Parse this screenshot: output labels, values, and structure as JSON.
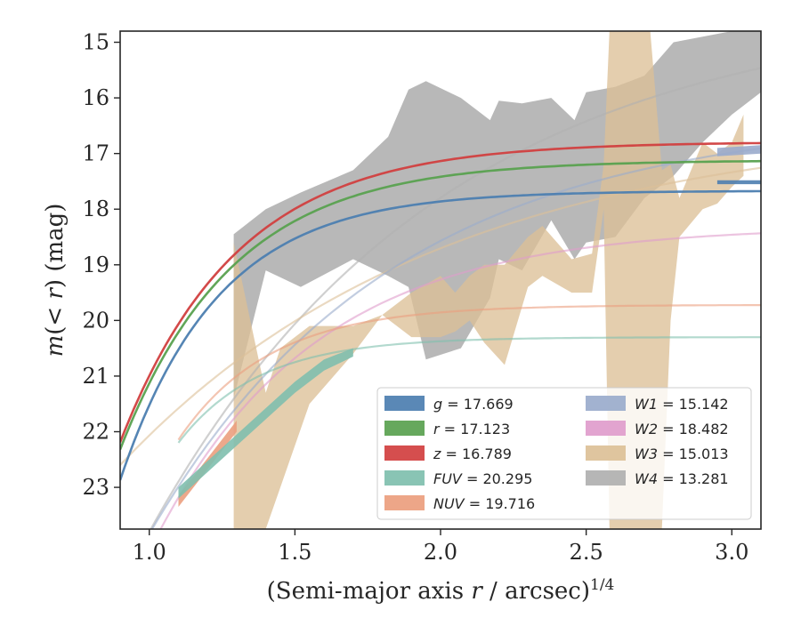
{
  "chart_data": {
    "type": "line",
    "title": "",
    "xlabel": "(Semi-major axis r / arcsec)^1/4",
    "xlabel_parts": [
      "(Semi-major axis ",
      "r",
      " / arcsec)",
      "1/4"
    ],
    "ylabel": "m(< r) (mag)",
    "ylabel_parts": [
      "m",
      "(< ",
      "r",
      ") (mag)"
    ],
    "xlim": [
      0.9,
      3.1
    ],
    "ylim": [
      23.75,
      14.8
    ],
    "y_inverted": true,
    "grid": false,
    "legend_position": "lower-right",
    "xticks": [
      1.0,
      1.5,
      2.0,
      2.5,
      3.0
    ],
    "xtick_labels": [
      "1.0",
      "1.5",
      "2.0",
      "2.5",
      "3.0"
    ],
    "yticks": [
      15,
      16,
      17,
      18,
      19,
      20,
      21,
      22,
      23
    ],
    "ytick_labels": [
      "15",
      "16",
      "17",
      "18",
      "19",
      "20",
      "21",
      "22",
      "23"
    ],
    "series": [
      {
        "key": "g",
        "label": "17.669",
        "color": "#4c7eb0",
        "kind": "curve",
        "asymptote": 17.67,
        "amp": 5.2,
        "k": 3.0,
        "x0": 0.9,
        "x1": 3.1,
        "band": [
          [
            2.95,
            17.55,
            17.48
          ],
          [
            3.1,
            17.55,
            17.48
          ]
        ]
      },
      {
        "key": "r",
        "label": "17.123",
        "color": "#59a14f",
        "kind": "curve",
        "asymptote": 17.12,
        "amp": 5.2,
        "k": 2.6,
        "x0": 0.9,
        "x1": 3.1,
        "band": []
      },
      {
        "key": "z",
        "label": "16.789",
        "color": "#d13f3f",
        "kind": "curve",
        "asymptote": 16.79,
        "amp": 5.4,
        "k": 2.5,
        "x0": 0.9,
        "x1": 3.1,
        "band": []
      },
      {
        "key": "FUV",
        "label": "20.295",
        "color": "#7fbfae",
        "kind": "curve",
        "asymptote": 20.3,
        "amp": 3.9,
        "k": 3.6,
        "x0": 1.1,
        "x1": 3.1,
        "band": [
          [
            1.1,
            23.2,
            23.0
          ],
          [
            1.5,
            21.3,
            21.1
          ],
          [
            1.6,
            20.9,
            20.7
          ],
          [
            1.7,
            20.65,
            20.5
          ]
        ]
      },
      {
        "key": "NUV",
        "label": "19.716",
        "color": "#eb9e7e",
        "kind": "curve",
        "asymptote": 19.72,
        "amp": 4.6,
        "k": 3.2,
        "x0": 1.1,
        "x1": 3.1,
        "band": [
          [
            1.1,
            23.35,
            23.15
          ],
          [
            1.3,
            22.0,
            21.8
          ]
        ]
      },
      {
        "key": "W1",
        "label": "15.142",
        "color": "#9aabcc",
        "kind": "curve",
        "asymptote": 16.3,
        "amp": 8.5,
        "k": 1.2,
        "x0": 0.9,
        "x1": 3.1,
        "band": [
          [
            2.95,
            17.05,
            16.9
          ],
          [
            3.1,
            17.0,
            16.85
          ]
        ]
      },
      {
        "key": "W2",
        "label": "18.482",
        "color": "#df9ccc",
        "kind": "curve",
        "asymptote": 18.3,
        "amp": 7.0,
        "k": 1.8,
        "x0": 0.9,
        "x1": 3.1,
        "band": []
      },
      {
        "key": "W3",
        "label": "15.013",
        "color": "#dcc097",
        "kind": "band",
        "curve": {
          "asymptote": 16.4,
          "amp": 6.2,
          "k": 0.9,
          "x0": 0.9,
          "x1": 3.1
        },
        "band": [
          [
            1.29,
            23.75,
            18.6
          ],
          [
            1.4,
            23.75,
            21.3
          ],
          [
            1.45,
            23.0,
            20.5
          ],
          [
            1.55,
            21.5,
            20.1
          ],
          [
            1.7,
            20.6,
            20.1
          ],
          [
            1.8,
            19.9,
            19.9
          ],
          [
            1.9,
            20.3,
            19.5
          ],
          [
            2.0,
            20.3,
            19.2
          ],
          [
            2.05,
            20.2,
            19.5
          ],
          [
            2.1,
            20.0,
            19.2
          ],
          [
            2.15,
            20.4,
            19.0
          ],
          [
            2.22,
            20.8,
            19.0
          ],
          [
            2.3,
            19.4,
            18.5
          ],
          [
            2.35,
            19.2,
            18.3
          ],
          [
            2.45,
            19.5,
            18.9
          ],
          [
            2.52,
            19.5,
            18.8
          ],
          [
            2.56,
            18.0,
            17.2
          ],
          [
            2.58,
            23.75,
            14.8
          ],
          [
            2.72,
            23.75,
            14.8
          ],
          [
            2.76,
            23.75,
            17.3
          ],
          [
            2.79,
            20.0,
            17.2
          ],
          [
            2.82,
            18.5,
            17.8
          ],
          [
            2.9,
            18.0,
            16.8
          ],
          [
            2.95,
            17.9,
            17.0
          ],
          [
            3.0,
            17.6,
            16.8
          ],
          [
            3.04,
            17.4,
            16.3
          ]
        ]
      },
      {
        "key": "W4",
        "label": "13.281",
        "color": "#b0b0b0",
        "kind": "band",
        "curve": {
          "asymptote": 14.3,
          "amp": 10.5,
          "k": 1.0,
          "x0": 0.9,
          "x1": 3.1
        },
        "band": [
          [
            1.29,
            21.4,
            18.45
          ],
          [
            1.4,
            19.1,
            18.0
          ],
          [
            1.52,
            19.4,
            17.7
          ],
          [
            1.7,
            18.9,
            17.3
          ],
          [
            1.82,
            19.2,
            16.7
          ],
          [
            1.89,
            19.4,
            15.85
          ],
          [
            1.95,
            20.7,
            15.7
          ],
          [
            2.07,
            20.5,
            16.0
          ],
          [
            2.17,
            19.6,
            16.4
          ],
          [
            2.2,
            18.9,
            16.05
          ],
          [
            2.28,
            19.1,
            16.1
          ],
          [
            2.38,
            18.2,
            16.0
          ],
          [
            2.46,
            18.9,
            16.4
          ],
          [
            2.5,
            18.6,
            15.9
          ],
          [
            2.6,
            18.5,
            15.8
          ],
          [
            2.7,
            17.8,
            15.6
          ],
          [
            2.8,
            17.4,
            15.0
          ],
          [
            2.9,
            16.8,
            14.9
          ],
          [
            3.0,
            16.3,
            14.8
          ],
          [
            3.1,
            15.9,
            14.8
          ]
        ]
      }
    ]
  }
}
